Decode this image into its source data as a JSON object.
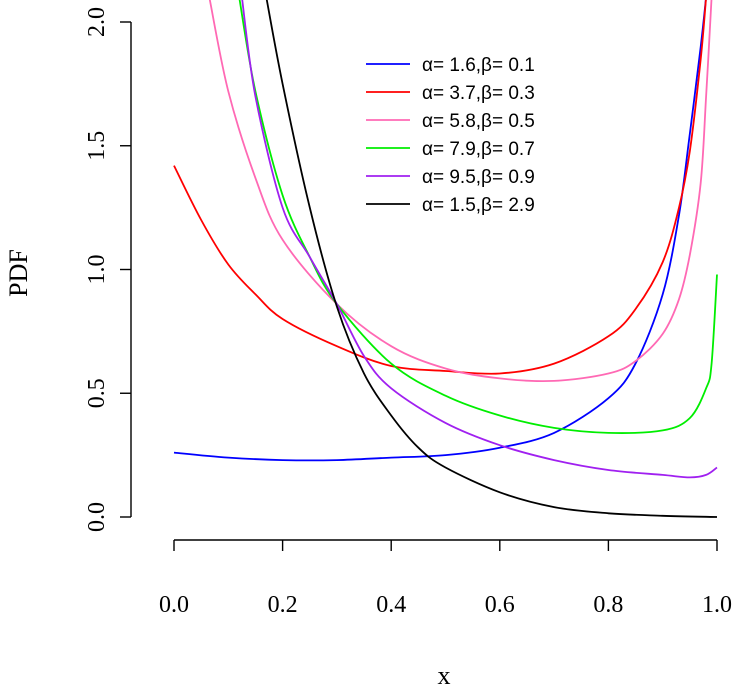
{
  "chart_data": {
    "type": "line",
    "title": "",
    "xlabel": "x",
    "ylabel": "PDF",
    "xlim": [
      0,
      1
    ],
    "ylim": [
      0,
      2
    ],
    "x_ticks": [
      "0.0",
      "0.2",
      "0.4",
      "0.6",
      "0.8",
      "1.0"
    ],
    "y_ticks": [
      "0.0",
      "0.5",
      "1.0",
      "1.5",
      "2.0"
    ],
    "legend_position": "top-right",
    "grid": false,
    "series": [
      {
        "name": "α= 1.6,β= 0.1",
        "color": "#0000ff",
        "x": [
          0,
          0.1,
          0.2,
          0.3,
          0.4,
          0.5,
          0.6,
          0.7,
          0.8,
          0.85,
          0.9,
          0.93,
          0.95,
          0.97,
          0.98
        ],
        "y": [
          0.26,
          0.24,
          0.23,
          0.23,
          0.24,
          0.25,
          0.28,
          0.34,
          0.48,
          0.62,
          0.9,
          1.22,
          1.55,
          1.9,
          2.1
        ]
      },
      {
        "name": "α= 3.7,β= 0.3",
        "color": "#ff0000",
        "x": [
          0,
          0.05,
          0.1,
          0.15,
          0.2,
          0.3,
          0.4,
          0.5,
          0.6,
          0.7,
          0.8,
          0.85,
          0.9,
          0.93,
          0.95,
          0.97,
          0.98
        ],
        "y": [
          1.42,
          1.2,
          1.02,
          0.9,
          0.8,
          0.69,
          0.61,
          0.59,
          0.58,
          0.62,
          0.73,
          0.84,
          1.03,
          1.25,
          1.48,
          1.85,
          2.1
        ]
      },
      {
        "name": "α= 5.8,β= 0.5",
        "color": "#ff69b4",
        "x": [
          0.065,
          0.1,
          0.15,
          0.2,
          0.3,
          0.4,
          0.5,
          0.6,
          0.7,
          0.8,
          0.85,
          0.9,
          0.93,
          0.95,
          0.97,
          0.98,
          0.99
        ],
        "y": [
          2.1,
          1.72,
          1.37,
          1.12,
          0.86,
          0.69,
          0.6,
          0.56,
          0.55,
          0.58,
          0.63,
          0.74,
          0.88,
          1.06,
          1.35,
          1.7,
          2.1
        ]
      },
      {
        "name": "α= 7.9,β= 0.7",
        "color": "#00ee00",
        "x": [
          0.12,
          0.15,
          0.2,
          0.25,
          0.3,
          0.4,
          0.5,
          0.6,
          0.7,
          0.8,
          0.9,
          0.95,
          0.98,
          0.99,
          1.0
        ],
        "y": [
          2.1,
          1.72,
          1.3,
          1.05,
          0.86,
          0.62,
          0.49,
          0.41,
          0.36,
          0.34,
          0.35,
          0.4,
          0.52,
          0.62,
          0.98
        ]
      },
      {
        "name": "α= 9.5,β= 0.9",
        "color": "#a020f0",
        "x": [
          0.125,
          0.15,
          0.2,
          0.25,
          0.3,
          0.35,
          0.4,
          0.5,
          0.6,
          0.7,
          0.8,
          0.9,
          0.95,
          0.98,
          1.0
        ],
        "y": [
          2.1,
          1.7,
          1.25,
          1.05,
          0.86,
          0.65,
          0.52,
          0.38,
          0.29,
          0.23,
          0.19,
          0.17,
          0.16,
          0.17,
          0.2
        ]
      },
      {
        "name": "α= 1.5,β= 2.9",
        "color": "#000000",
        "x": [
          0.17,
          0.2,
          0.25,
          0.3,
          0.35,
          0.4,
          0.45,
          0.5,
          0.6,
          0.7,
          0.8,
          0.9,
          1.0
        ],
        "y": [
          2.1,
          1.75,
          1.25,
          0.85,
          0.58,
          0.41,
          0.28,
          0.2,
          0.1,
          0.04,
          0.015,
          0.005,
          0.0
        ]
      }
    ]
  }
}
